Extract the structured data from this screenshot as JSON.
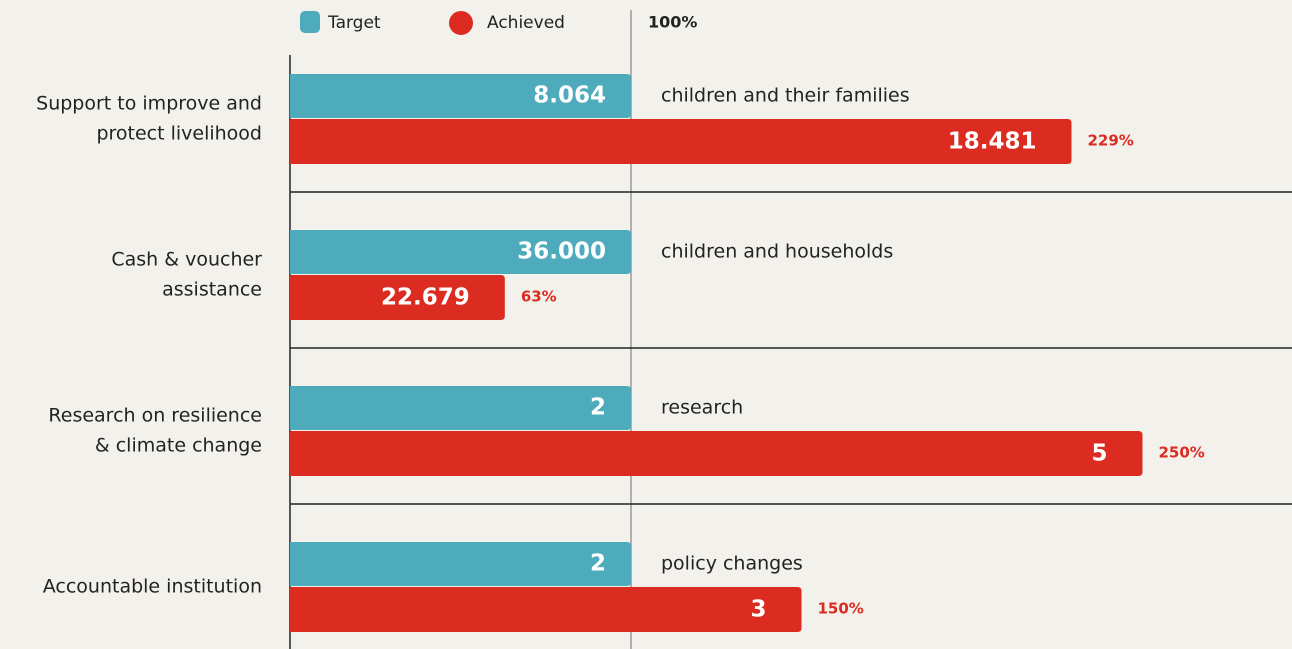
{
  "chart_data": {
    "type": "bar",
    "categories": [
      [
        "Support to improve and",
        "protect livelihood"
      ],
      [
        "Cash & voucher",
        "assistance"
      ],
      [
        "Research on resilience",
        "& climate change"
      ],
      [
        "Accountable institution"
      ]
    ],
    "series": [
      {
        "name": "Target",
        "color": "#4eabbb",
        "values": [
          8064,
          36000,
          2,
          2
        ],
        "value_labels": [
          "8.064",
          "36.000",
          "2",
          "2"
        ]
      },
      {
        "name": "Achieved",
        "color": "#dc2b21",
        "values": [
          18481,
          22679,
          5,
          3
        ],
        "value_labels": [
          "18.481",
          "22.679",
          "5",
          "3"
        ],
        "percent_values": [
          229,
          63,
          250,
          150
        ],
        "percent_labels": [
          "229%",
          "63%",
          "250%",
          "150%"
        ]
      }
    ],
    "units": [
      "children and their families",
      "children and households",
      "research",
      "policy changes"
    ],
    "reference": {
      "value": 100,
      "label": "100%"
    }
  }
}
